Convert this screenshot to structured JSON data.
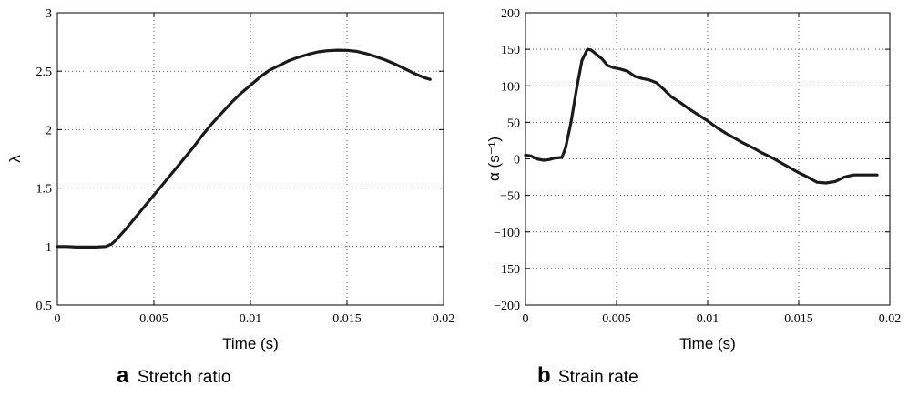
{
  "chart_data": [
    {
      "type": "line",
      "caption_letter": "a",
      "caption_text": "Stretch ratio",
      "xlabel": "Time (s)",
      "ylabel": "λ",
      "xlim": [
        0,
        0.02
      ],
      "ylim": [
        0.5,
        3
      ],
      "xticks": [
        "0",
        "0.005",
        "0.01",
        "0.015",
        "0.02"
      ],
      "yticks": [
        "0.5",
        "1",
        "1.5",
        "2",
        "2.5",
        "3"
      ],
      "grid": true,
      "series": [
        {
          "x": [
            0,
            0.0005,
            0.001,
            0.0015,
            0.002,
            0.0025,
            0.0028,
            0.003,
            0.0035,
            0.004,
            0.0045,
            0.005,
            0.0055,
            0.006,
            0.0065,
            0.007,
            0.0075,
            0.008,
            0.0085,
            0.009,
            0.0095,
            0.01,
            0.0105,
            0.011,
            0.0115,
            0.012,
            0.0125,
            0.013,
            0.0135,
            0.014,
            0.0145,
            0.015,
            0.0155,
            0.016,
            0.0165,
            0.017,
            0.0175,
            0.018,
            0.0185,
            0.019,
            0.0193
          ],
          "y": [
            1.0,
            1.0,
            0.995,
            0.995,
            0.995,
            1.0,
            1.02,
            1.05,
            1.14,
            1.24,
            1.34,
            1.44,
            1.54,
            1.64,
            1.74,
            1.84,
            1.95,
            2.05,
            2.14,
            2.23,
            2.31,
            2.38,
            2.45,
            2.51,
            2.55,
            2.59,
            2.62,
            2.645,
            2.665,
            2.675,
            2.68,
            2.678,
            2.67,
            2.65,
            2.625,
            2.595,
            2.56,
            2.52,
            2.48,
            2.445,
            2.43
          ]
        }
      ]
    },
    {
      "type": "line",
      "caption_letter": "b",
      "caption_text": "Strain rate",
      "xlabel": "Time (s)",
      "ylabel": "α (s⁻¹)",
      "xlim": [
        0,
        0.02
      ],
      "ylim": [
        -200,
        200
      ],
      "xticks": [
        "0",
        "0.005",
        "0.01",
        "0.015",
        "0.02"
      ],
      "yticks": [
        "−200",
        "−150",
        "−100",
        "−50",
        "0",
        "50",
        "100",
        "150",
        "200"
      ],
      "grid": true,
      "series": [
        {
          "x": [
            0,
            0.0003,
            0.0006,
            0.001,
            0.0013,
            0.0016,
            0.002,
            0.0022,
            0.0025,
            0.0028,
            0.0031,
            0.0034,
            0.0036,
            0.0039,
            0.0042,
            0.0045,
            0.0048,
            0.0052,
            0.0056,
            0.006,
            0.0064,
            0.0068,
            0.0072,
            0.0076,
            0.008,
            0.0085,
            0.009,
            0.0095,
            0.01,
            0.0105,
            0.011,
            0.0115,
            0.012,
            0.0125,
            0.013,
            0.0135,
            0.014,
            0.0145,
            0.015,
            0.0155,
            0.016,
            0.0165,
            0.017,
            0.0175,
            0.018,
            0.0185,
            0.019,
            0.0193
          ],
          "y": [
            5,
            4,
            0,
            -2,
            -1,
            1,
            2,
            15,
            50,
            95,
            135,
            150,
            149,
            143,
            137,
            128,
            125,
            123,
            120,
            113,
            110,
            108,
            104,
            95,
            85,
            77,
            68,
            60,
            52,
            43,
            35,
            28,
            21,
            15,
            8,
            2,
            -5,
            -12,
            -19,
            -25,
            -32,
            -33,
            -31,
            -25,
            -22,
            -22,
            -22,
            -22
          ]
        }
      ]
    }
  ]
}
